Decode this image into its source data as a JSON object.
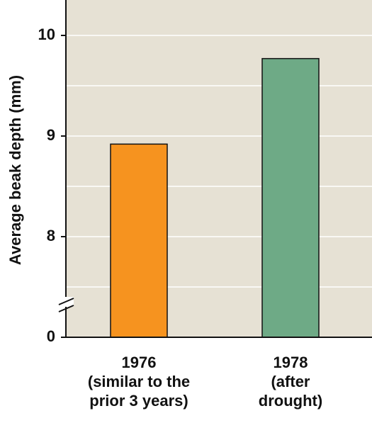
{
  "chart_data": {
    "type": "bar",
    "title": "",
    "ylabel": "Average beak depth (mm)",
    "ylim_display": [
      7,
      10.3
    ],
    "axis_break": true,
    "y_ticks": [
      {
        "label": "10",
        "value": 10
      },
      {
        "label": "9",
        "value": 9
      },
      {
        "label": "8",
        "value": 8
      },
      {
        "label": "0",
        "value": 0
      }
    ],
    "bars": [
      {
        "label_lines": [
          "1976",
          "(similar to the",
          "prior 3 years)"
        ],
        "value": 8.92,
        "color": "#f6931f"
      },
      {
        "label_lines": [
          "1978",
          "(after",
          "drought)"
        ],
        "value": 9.77,
        "color": "#6eaa86"
      }
    ],
    "plot_background": "#e6e1d4",
    "grid": true,
    "grid_color": "#ffffff"
  }
}
